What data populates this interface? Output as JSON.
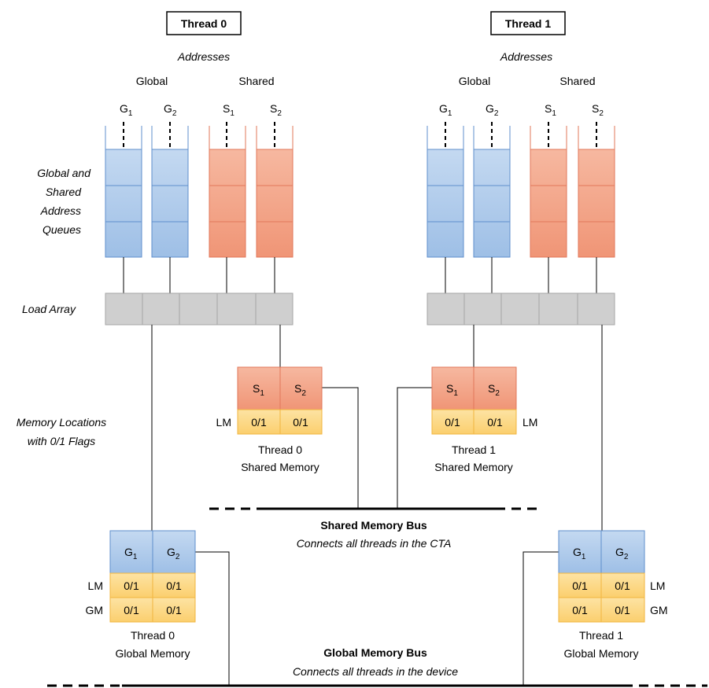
{
  "threads": [
    {
      "label": "Thread 0"
    },
    {
      "label": "Thread 1"
    }
  ],
  "headers": {
    "addresses": "Addresses",
    "global": "Global",
    "shared": "Shared"
  },
  "queue_labels": {
    "g1": "G",
    "g2": "G",
    "s1": "S",
    "s2": "S",
    "sub1": "1",
    "sub2": "2"
  },
  "side_labels": {
    "queues": [
      "Global and",
      "Shared",
      "Address",
      "Queues"
    ],
    "load_array": "Load Array",
    "memory_locations": [
      "Memory Locations",
      "with 0/1 Flags"
    ]
  },
  "flag": "0/1",
  "lm": "LM",
  "gm": "GM",
  "shared_memory_captions": [
    [
      "Thread 0",
      "Shared Memory"
    ],
    [
      "Thread 1",
      "Shared Memory"
    ]
  ],
  "global_memory_captions": [
    [
      "Thread 0",
      "Global Memory"
    ],
    [
      "Thread 1",
      "Global Memory"
    ]
  ],
  "shared_bus": {
    "title": "Shared Memory Bus",
    "subtitle": "Connects all threads in the CTA"
  },
  "global_bus": {
    "title": "Global Memory Bus",
    "subtitle": "Connects all threads in the device"
  },
  "colors": {
    "blue_fill": "#a9c7ea",
    "blue_stroke": "#5f8fcc",
    "orange_fill": "#f3a283",
    "orange_stroke": "#e2775a",
    "yellow_fill": "#fcd88a",
    "yellow_stroke": "#f1b53f",
    "gray_fill": "#cfcfcf",
    "gray_stroke": "#a6a6a6"
  }
}
